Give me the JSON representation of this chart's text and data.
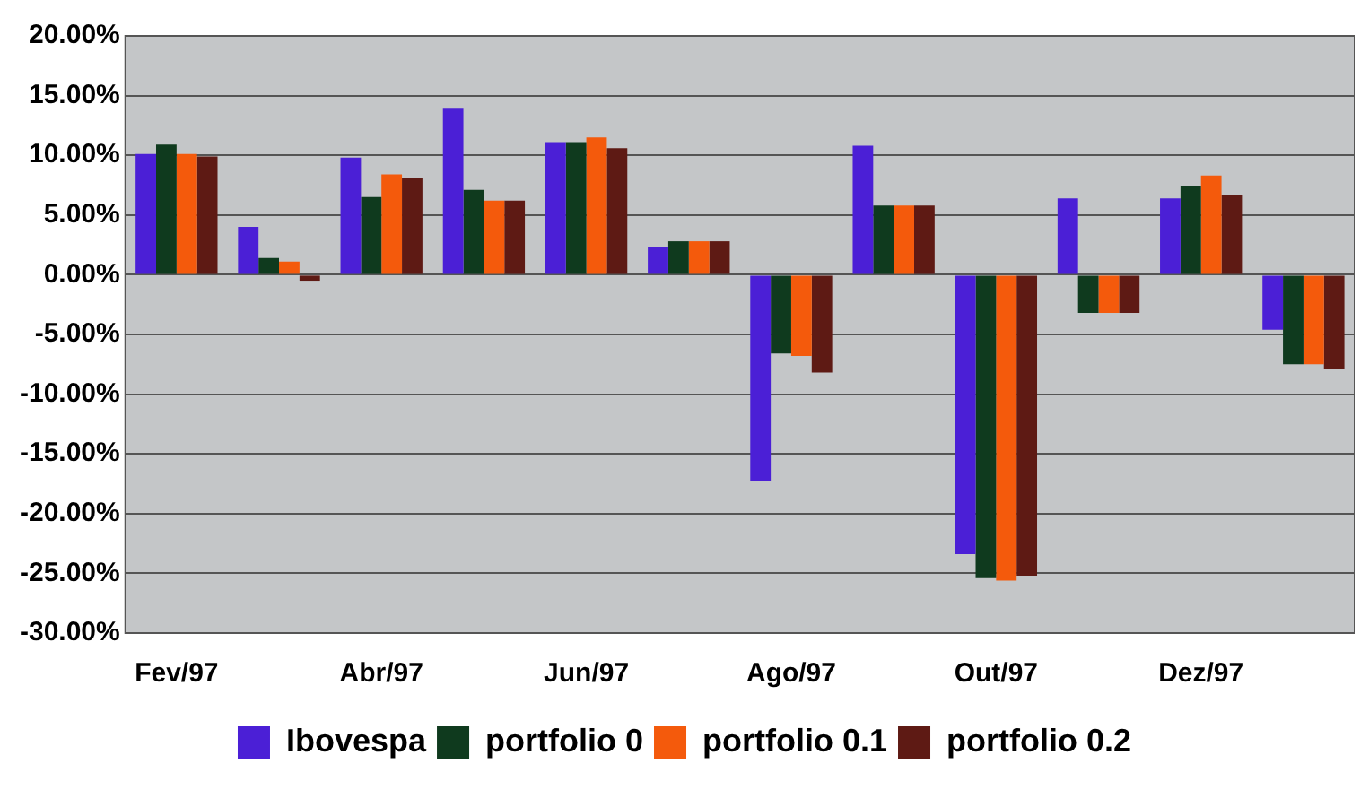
{
  "chart_data": {
    "type": "bar",
    "categories": [
      "Fev/97",
      null,
      "Abr/97",
      null,
      "Jun/97",
      null,
      "Ago/97",
      null,
      "Out/97",
      null,
      "Dez/97",
      null
    ],
    "series": [
      {
        "name": "Ibovespa",
        "color": "#4b1fd6",
        "values": [
          10.1,
          4.0,
          9.8,
          13.9,
          11.1,
          2.3,
          -17.3,
          10.8,
          -23.4,
          6.4,
          6.4,
          -4.6
        ]
      },
      {
        "name": "portfolio 0",
        "color": "#0f3a1e",
        "values": [
          10.9,
          1.4,
          6.5,
          7.1,
          11.1,
          2.8,
          -6.6,
          5.8,
          -25.4,
          -3.2,
          7.4,
          -7.5
        ]
      },
      {
        "name": "portfolio 0.1",
        "color": "#f45a0c",
        "values": [
          10.1,
          1.1,
          8.4,
          6.2,
          11.5,
          2.8,
          -6.8,
          5.8,
          -25.6,
          -3.2,
          8.3,
          -7.5
        ]
      },
      {
        "name": "portfolio 0.2",
        "color": "#5e1a14",
        "values": [
          9.9,
          -0.5,
          8.1,
          6.2,
          10.6,
          2.8,
          -8.2,
          5.8,
          -25.2,
          -3.2,
          6.7,
          -7.9
        ]
      }
    ],
    "ylim": [
      -30,
      20
    ],
    "yticks": [
      {
        "value": 20,
        "label": "20.00%"
      },
      {
        "value": 15,
        "label": "15.00%"
      },
      {
        "value": 10,
        "label": "10.00%"
      },
      {
        "value": 5,
        "label": "5.00%"
      },
      {
        "value": 0,
        "label": "0.00%"
      },
      {
        "value": -5,
        "label": "-5.00%"
      },
      {
        "value": -10,
        "label": "-10.00%"
      },
      {
        "value": -15,
        "label": "-15.00%"
      },
      {
        "value": -20,
        "label": "-20.00%"
      },
      {
        "value": -25,
        "label": "-25.00%"
      },
      {
        "value": -30,
        "label": "-30.00%"
      }
    ],
    "grid": "y",
    "legend": "bottom"
  }
}
